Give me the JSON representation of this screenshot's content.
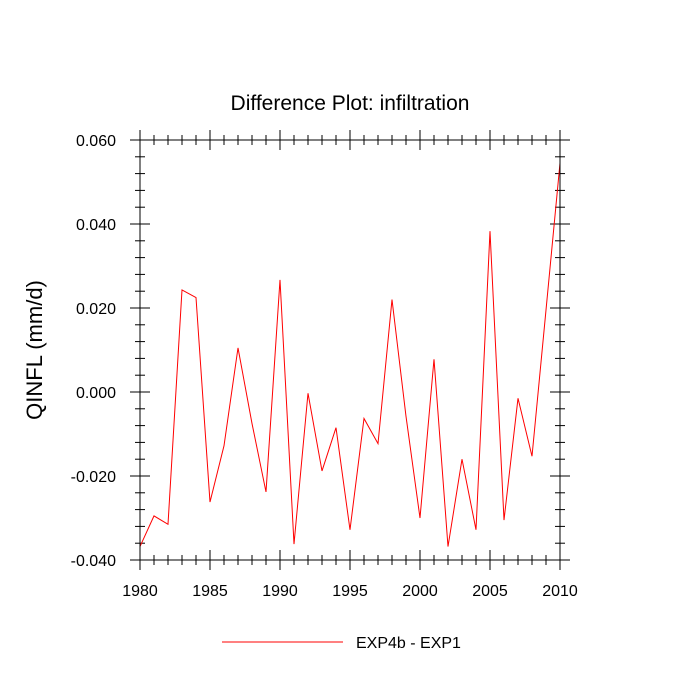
{
  "chart_data": {
    "type": "line",
    "title": "Difference Plot: infiltration",
    "xlabel": "",
    "ylabel": "QINFL  (mm/d)",
    "xlim": [
      1980,
      2010
    ],
    "ylim": [
      -0.04,
      0.06
    ],
    "x_ticks": [
      1980,
      1985,
      1990,
      1995,
      2000,
      2005,
      2010
    ],
    "x_tick_labels": [
      "1980",
      "1985",
      "1990",
      "1995",
      "2000",
      "2005",
      "2010"
    ],
    "y_ticks": [
      -0.04,
      -0.02,
      0.0,
      0.02,
      0.04,
      0.06
    ],
    "y_tick_labels": [
      "-0.040",
      "-0.020",
      "0.000",
      "0.020",
      "0.040",
      "0.060"
    ],
    "grid": false,
    "legend_position": "bottom-center",
    "series": [
      {
        "name": "EXP4b - EXP1",
        "color": "#ff0000",
        "x": [
          1980,
          1981,
          1982,
          1983,
          1984,
          1985,
          1986,
          1987,
          1988,
          1989,
          1990,
          1991,
          1992,
          1993,
          1994,
          1995,
          1996,
          1997,
          1998,
          1999,
          2000,
          2001,
          2002,
          2003,
          2004,
          2005,
          2006,
          2007,
          2008,
          2009,
          2010
        ],
        "values": [
          -0.0368,
          -0.0295,
          -0.0315,
          0.0243,
          0.0225,
          -0.0262,
          -0.0128,
          0.0105,
          -0.0075,
          -0.0238,
          0.0267,
          -0.0362,
          -0.0003,
          -0.0188,
          -0.0085,
          -0.0328,
          -0.0063,
          -0.0123,
          0.022,
          -0.0058,
          -0.03,
          0.0078,
          -0.0368,
          -0.016,
          -0.0328,
          0.0383,
          -0.0305,
          -0.0015,
          -0.0153,
          0.0195,
          0.0545
        ]
      }
    ]
  }
}
